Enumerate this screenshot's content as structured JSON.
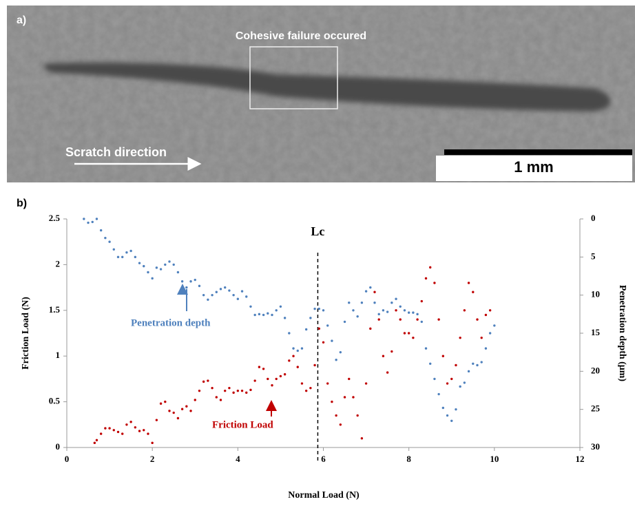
{
  "image_panel": {
    "label": "a)",
    "annotation": "Cohesive failure occured",
    "arrow_label": "Scratch direction",
    "scale_bar": "1 mm"
  },
  "chart_data": {
    "type": "scatter",
    "panel_label": "b)",
    "x_label": "Normal Load (N)",
    "y_label": "Friction Load (N)",
    "y2_label": "Penetration depth (μm)",
    "xlim": [
      0,
      12
    ],
    "xticks": [
      0,
      2,
      4,
      6,
      8,
      10,
      12
    ],
    "ylim": [
      0,
      2.5
    ],
    "yticks": [
      0,
      0.5,
      1,
      1.5,
      2,
      2.5
    ],
    "y2lim": [
      30,
      0
    ],
    "y2ticks": [
      0,
      5,
      10,
      15,
      20,
      25,
      30
    ],
    "reference_line": {
      "label": "Lc",
      "x": 5.87
    },
    "annotations": [
      "Penetration depth",
      "Friction Load"
    ],
    "series": [
      {
        "name": "Friction Load",
        "color": "#c00000",
        "axis": "y",
        "x": [
          0.65,
          0.7,
          0.8,
          0.9,
          1.0,
          1.1,
          1.2,
          1.3,
          1.4,
          1.5,
          1.6,
          1.7,
          1.8,
          1.9,
          2.0,
          2.1,
          2.2,
          2.3,
          2.4,
          2.5,
          2.6,
          2.7,
          2.8,
          2.9,
          3.0,
          3.1,
          3.2,
          3.3,
          3.4,
          3.5,
          3.6,
          3.7,
          3.8,
          3.9,
          4.0,
          4.1,
          4.2,
          4.3,
          4.4,
          4.5,
          4.6,
          4.7,
          4.8,
          4.9,
          5.0,
          5.1,
          5.2,
          5.3,
          5.4,
          5.5,
          5.6,
          5.7,
          5.8,
          5.9,
          6.0,
          6.1,
          6.2,
          6.3,
          6.4,
          6.5,
          6.6,
          6.7,
          6.8,
          6.9,
          7.0,
          7.1,
          7.2,
          7.3,
          7.4,
          7.5,
          7.6,
          7.7,
          7.8,
          7.9,
          8.0,
          8.1,
          8.2,
          8.3,
          8.4,
          8.5,
          8.6,
          8.7,
          8.8,
          8.9,
          9.0,
          9.1,
          9.2,
          9.3,
          9.4,
          9.5,
          9.6,
          9.7,
          9.8,
          9.9
        ],
        "values": [
          0.05,
          0.08,
          0.15,
          0.21,
          0.21,
          0.19,
          0.17,
          0.15,
          0.25,
          0.28,
          0.22,
          0.18,
          0.19,
          0.15,
          0.05,
          0.3,
          0.48,
          0.5,
          0.4,
          0.38,
          0.32,
          0.42,
          0.45,
          0.4,
          0.52,
          0.62,
          0.72,
          0.73,
          0.65,
          0.55,
          0.52,
          0.62,
          0.65,
          0.6,
          0.62,
          0.62,
          0.6,
          0.63,
          0.73,
          0.88,
          0.86,
          0.75,
          0.68,
          0.75,
          0.78,
          0.8,
          0.95,
          1.0,
          0.88,
          0.7,
          0.62,
          0.65,
          0.9,
          1.3,
          1.15,
          0.7,
          0.5,
          0.35,
          0.25,
          0.55,
          0.75,
          0.55,
          0.35,
          0.1,
          0.7,
          1.3,
          1.7,
          1.4,
          1.0,
          0.82,
          1.05,
          1.5,
          1.4,
          1.25,
          1.25,
          1.2,
          1.4,
          1.6,
          1.85,
          1.97,
          1.8,
          1.4,
          1.0,
          0.7,
          0.75,
          0.9,
          1.2,
          1.5,
          1.8,
          1.7,
          1.4,
          1.2,
          1.45,
          1.5
        ]
      },
      {
        "name": "Penetration depth",
        "color": "#4f81bd",
        "axis": "y2",
        "x": [
          0.4,
          0.5,
          0.6,
          0.7,
          0.8,
          0.9,
          1.0,
          1.1,
          1.2,
          1.3,
          1.4,
          1.5,
          1.6,
          1.7,
          1.8,
          1.9,
          2.0,
          2.1,
          2.2,
          2.3,
          2.4,
          2.5,
          2.6,
          2.7,
          2.8,
          2.9,
          3.0,
          3.1,
          3.2,
          3.3,
          3.4,
          3.5,
          3.6,
          3.7,
          3.8,
          3.9,
          4.0,
          4.1,
          4.2,
          4.3,
          4.4,
          4.5,
          4.6,
          4.7,
          4.8,
          4.9,
          5.0,
          5.1,
          5.2,
          5.3,
          5.4,
          5.5,
          5.6,
          5.7,
          5.8,
          5.9,
          6.0,
          6.1,
          6.2,
          6.3,
          6.4,
          6.5,
          6.6,
          6.7,
          6.8,
          6.9,
          7.0,
          7.1,
          7.2,
          7.3,
          7.4,
          7.5,
          7.6,
          7.7,
          7.8,
          7.9,
          8.0,
          8.1,
          8.2,
          8.3,
          8.4,
          8.5,
          8.6,
          8.7,
          8.8,
          8.9,
          9.0,
          9.1,
          9.2,
          9.3,
          9.4,
          9.5,
          9.6,
          9.7,
          9.8,
          9.9,
          10.0
        ],
        "values": [
          0.0,
          0.5,
          0.4,
          0.0,
          1.5,
          2.5,
          3.0,
          4.0,
          5.0,
          5.0,
          4.4,
          4.2,
          5.0,
          5.8,
          6.2,
          7.0,
          7.8,
          6.4,
          6.6,
          6.0,
          5.6,
          6.0,
          7.0,
          8.2,
          9.0,
          8.2,
          8.0,
          8.8,
          10.0,
          10.6,
          10.0,
          9.6,
          9.2,
          9.0,
          9.4,
          10.0,
          10.5,
          9.5,
          10.2,
          11.5,
          12.6,
          12.5,
          12.6,
          12.4,
          12.6,
          12.0,
          11.5,
          13.0,
          15.0,
          17.0,
          17.3,
          17.0,
          14.5,
          13.0,
          11.8,
          11.8,
          12.0,
          14.0,
          16.0,
          18.5,
          17.5,
          13.5,
          11.0,
          12.0,
          12.8,
          11.0,
          9.5,
          9.0,
          11.0,
          12.5,
          12.0,
          12.2,
          11.0,
          10.5,
          11.5,
          12.0,
          12.3,
          12.3,
          12.5,
          13.5,
          17.0,
          19.0,
          21.0,
          23.0,
          24.8,
          25.8,
          26.5,
          25.0,
          22.0,
          21.5,
          20.0,
          19.0,
          19.2,
          18.8,
          17.0,
          15.0,
          14.0
        ]
      }
    ]
  }
}
